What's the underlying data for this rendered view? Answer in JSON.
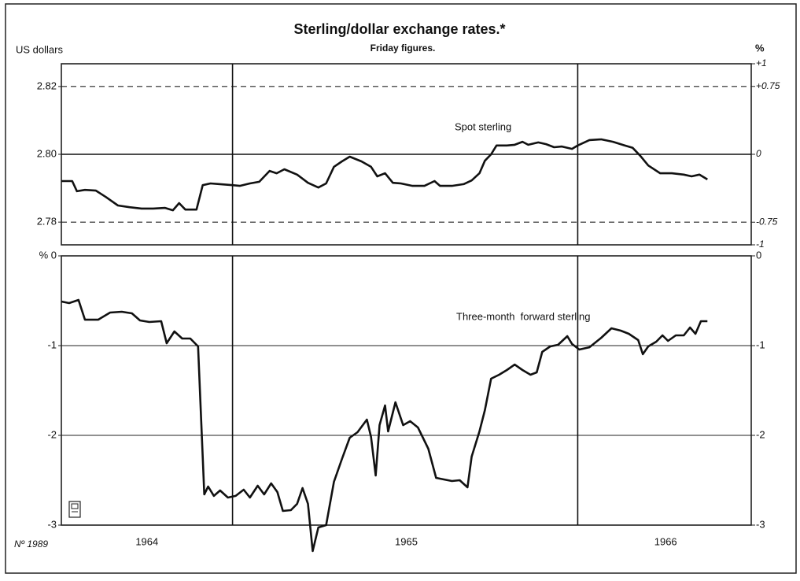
{
  "chart_data": [
    {
      "type": "line",
      "title": "Sterling/dollar exchange rates.*",
      "subtitle": "Friday figures.",
      "ylabel": "US dollars",
      "y2label": "%",
      "xlim": [
        1964.17,
        1966.83
      ],
      "ylim": [
        2.7733,
        2.8267
      ],
      "yticks": [
        {
          "value": 2.78,
          "label": "2.78"
        },
        {
          "value": 2.8,
          "label": "2.80"
        },
        {
          "value": 2.82,
          "label": "2.82"
        }
      ],
      "y2lim": [
        -1,
        1
      ],
      "y2ticks": [
        {
          "value": 1,
          "label": "+1"
        },
        {
          "value": 0.75,
          "label": "+0.75"
        },
        0,
        -0.75,
        -1
      ],
      "grid": "dashed",
      "zero_line": true,
      "vlines": [
        1964.83,
        1966.161
      ],
      "x": [
        1964.17,
        1964.212,
        1964.23,
        1964.261,
        1964.303,
        1964.342,
        1964.388,
        1964.433,
        1964.479,
        1964.524,
        1964.57,
        1964.6,
        1964.624,
        1964.648,
        1964.691,
        1964.715,
        1964.745,
        1964.782,
        1964.83,
        1964.858,
        1964.897,
        1964.933,
        1964.973,
        1965,
        1965.03,
        1965.079,
        1965.121,
        1965.161,
        1965.191,
        1965.221,
        1965.252,
        1965.282,
        1965.327,
        1965.364,
        1965.388,
        1965.418,
        1965.448,
        1965.479,
        1965.524,
        1965.57,
        1965.609,
        1965.63,
        1965.676,
        1965.721,
        1965.752,
        1965.782,
        1965.803,
        1965.827,
        1965.848,
        1965.888,
        1965.918,
        1965.948,
        1965.97,
        1966.009,
        1966.039,
        1966.07,
        1966.1,
        1966.139,
        1966.161,
        1966.206,
        1966.252,
        1966.297,
        1966.342,
        1966.373,
        1966.403,
        1966.433,
        1966.479,
        1966.524,
        1966.57,
        1966.6,
        1966.63,
        1966.661
      ],
      "series": [
        {
          "name": "Spot sterling",
          "color": "#111111",
          "values": [
            2.7921,
            2.7921,
            2.7891,
            2.7895,
            2.7893,
            2.7874,
            2.7849,
            2.7844,
            2.784,
            2.784,
            2.7842,
            2.7835,
            2.7856,
            2.7837,
            2.7837,
            2.7909,
            2.7914,
            2.7912,
            2.7909,
            2.7907,
            2.7914,
            2.7919,
            2.7951,
            2.7944,
            2.7956,
            2.794,
            2.7916,
            2.7902,
            2.7914,
            2.7963,
            2.7979,
            2.7993,
            2.7979,
            2.7963,
            2.7935,
            2.7944,
            2.7916,
            2.7914,
            2.7907,
            2.7907,
            2.7921,
            2.7907,
            2.7907,
            2.7912,
            2.7923,
            2.7944,
            2.7981,
            2.8,
            2.8026,
            2.8026,
            2.8028,
            2.8037,
            2.8028,
            2.8035,
            2.803,
            2.8021,
            2.8023,
            2.8016,
            2.8026,
            2.8042,
            2.8044,
            2.8037,
            2.8026,
            2.8019,
            2.7995,
            2.7967,
            2.7944,
            2.7944,
            2.794,
            2.7935,
            2.794,
            2.7926
          ]
        }
      ]
    },
    {
      "type": "line",
      "xlim": [
        1964.17,
        1966.83
      ],
      "xticks": [
        {
          "value": 1964.5,
          "label": "1964"
        },
        {
          "value": 1965.5,
          "label": "1965"
        },
        {
          "value": 1966.5,
          "label": "1966"
        }
      ],
      "ylim": [
        -3,
        0
      ],
      "yticks": [
        {
          "value": 0,
          "label": "% 0"
        },
        -1,
        -2,
        -3
      ],
      "y2lim": [
        -3,
        0
      ],
      "y2ticks": [
        0,
        -1,
        -2,
        -3
      ],
      "grid": "solid",
      "vlines": [
        1964.83,
        1966.161
      ],
      "x": [
        1964.17,
        1964.2,
        1964.236,
        1964.261,
        1964.312,
        1964.358,
        1964.403,
        1964.442,
        1964.473,
        1964.509,
        1964.555,
        1964.576,
        1964.606,
        1964.636,
        1964.667,
        1964.697,
        1964.721,
        1964.736,
        1964.758,
        1964.782,
        1964.812,
        1964.842,
        1964.873,
        1964.897,
        1964.927,
        1964.952,
        1964.979,
        1965.003,
        1965.024,
        1965.055,
        1965.079,
        1965.1,
        1965.121,
        1965.139,
        1965.161,
        1965.191,
        1965.221,
        1965.252,
        1965.282,
        1965.312,
        1965.348,
        1965.364,
        1965.382,
        1965.397,
        1965.418,
        1965.43,
        1965.458,
        1965.488,
        1965.515,
        1965.545,
        1965.585,
        1965.615,
        1965.645,
        1965.676,
        1965.706,
        1965.736,
        1965.752,
        1965.782,
        1965.803,
        1965.827,
        1965.858,
        1965.888,
        1965.918,
        1965.948,
        1965.979,
        1966.003,
        1966.024,
        1966.055,
        1966.085,
        1966.121,
        1966.139,
        1966.167,
        1966.206,
        1966.252,
        1966.291,
        1966.327,
        1966.358,
        1966.394,
        1966.412,
        1966.433,
        1966.464,
        1966.488,
        1966.509,
        1966.539,
        1966.57,
        1966.594,
        1966.615,
        1966.636,
        1966.661
      ],
      "series": [
        {
          "name": "Three-month  forward sterling",
          "color": "#111111",
          "values": [
            -0.509,
            -0.526,
            -0.491,
            -0.711,
            -0.711,
            -0.632,
            -0.623,
            -0.64,
            -0.719,
            -0.737,
            -0.728,
            -0.974,
            -0.842,
            -0.921,
            -0.921,
            -1.009,
            -2.658,
            -2.57,
            -2.675,
            -2.614,
            -2.693,
            -2.675,
            -2.605,
            -2.693,
            -2.561,
            -2.658,
            -2.535,
            -2.632,
            -2.842,
            -2.833,
            -2.763,
            -2.588,
            -2.763,
            -3.289,
            -3.026,
            -3,
            -2.518,
            -2.263,
            -2.026,
            -1.965,
            -1.825,
            -2.018,
            -2.447,
            -1.886,
            -1.667,
            -1.956,
            -1.632,
            -1.886,
            -1.842,
            -1.912,
            -2.149,
            -2.474,
            -2.491,
            -2.509,
            -2.5,
            -2.579,
            -2.237,
            -1.956,
            -1.719,
            -1.368,
            -1.325,
            -1.272,
            -1.211,
            -1.272,
            -1.325,
            -1.298,
            -1.07,
            -1.009,
            -0.991,
            -0.895,
            -0.982,
            -1.044,
            -1.018,
            -0.912,
            -0.807,
            -0.833,
            -0.868,
            -0.939,
            -1.096,
            -1.009,
            -0.956,
            -0.886,
            -0.947,
            -0.886,
            -0.886,
            -0.798,
            -0.868,
            -0.728,
            -0.728
          ]
        }
      ]
    }
  ],
  "footer": "Nº 1989"
}
